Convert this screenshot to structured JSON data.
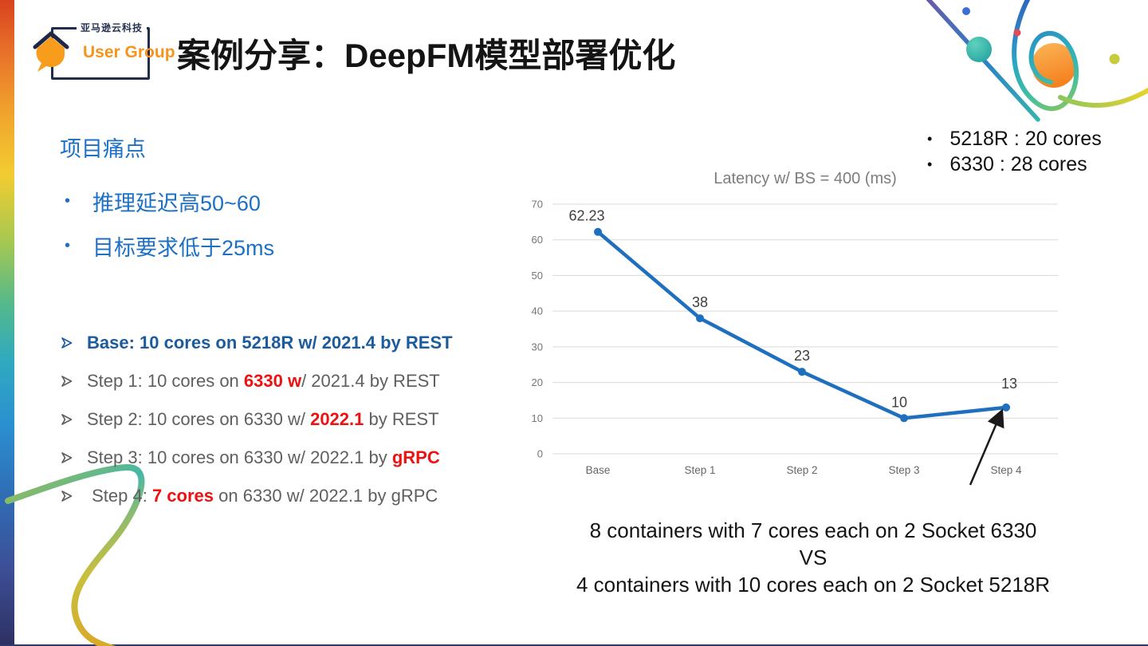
{
  "logo": {
    "org": "亚马逊云科技",
    "group": "User Group"
  },
  "header": {
    "title": "案例分享：DeepFM模型部署优化"
  },
  "pain_points": {
    "heading": "项目痛点",
    "items": [
      "推理延迟高50~60",
      "目标要求低于25ms"
    ]
  },
  "steps": {
    "items": [
      {
        "runs": [
          {
            "text": "Base: 10 cores on 5218R w/ 2021.4 by REST",
            "style": "blue-bold"
          }
        ]
      },
      {
        "runs": [
          {
            "text": "Step 1: 10 cores on ",
            "style": "gray"
          },
          {
            "text": "6330 w",
            "style": "red-bold"
          },
          {
            "text": "/ 2021.4 by REST",
            "style": "gray"
          }
        ]
      },
      {
        "runs": [
          {
            "text": "Step 2: 10 cores on 6330 w/ ",
            "style": "gray"
          },
          {
            "text": "2022.1",
            "style": "red-bold"
          },
          {
            "text": " by REST",
            "style": "gray"
          }
        ]
      },
      {
        "runs": [
          {
            "text": "Step 3: 10 cores on 6330 w/ 2022.1 by ",
            "style": "gray"
          },
          {
            "text": "gRPC",
            "style": "red-bold"
          }
        ]
      },
      {
        "runs": [
          {
            "text": " Step 4: ",
            "style": "gray"
          },
          {
            "text": "7 cores",
            "style": "red-bold"
          },
          {
            "text": " on 6330 w/ 2022.1 by gRPC",
            "style": "gray"
          }
        ]
      }
    ]
  },
  "specs": {
    "items": [
      "5218R : 20 cores",
      "6330 : 28 cores"
    ]
  },
  "chart_data": {
    "type": "line",
    "title": "Latency w/ BS = 400 (ms)",
    "categories": [
      "Base",
      "Step 1",
      "Step 2",
      "Step 3",
      "Step 4"
    ],
    "series": [
      {
        "name": "Latency (ms)",
        "values": [
          62.23,
          38,
          23,
          10,
          13
        ]
      }
    ],
    "ylim": [
      0,
      70
    ],
    "ytick_step": 10,
    "grid": true,
    "legend_position": "none",
    "line_color": "#1f6fbf",
    "annotation": {
      "type": "arrow",
      "target": "Step 4"
    }
  },
  "caption": {
    "lines": [
      "8 containers with 7 cores each on 2 Socket 6330",
      "VS",
      "4 containers with 10 cores each on 2 Socket 5218R"
    ]
  },
  "colors": {
    "accent_blue": "#1d70c3",
    "deep_blue": "#1c5c9c",
    "highlight_red": "#ee1111",
    "chart_blue": "#1f6fbf",
    "logo_orange": "#f7941d",
    "strip_navy": "#2e3063"
  }
}
